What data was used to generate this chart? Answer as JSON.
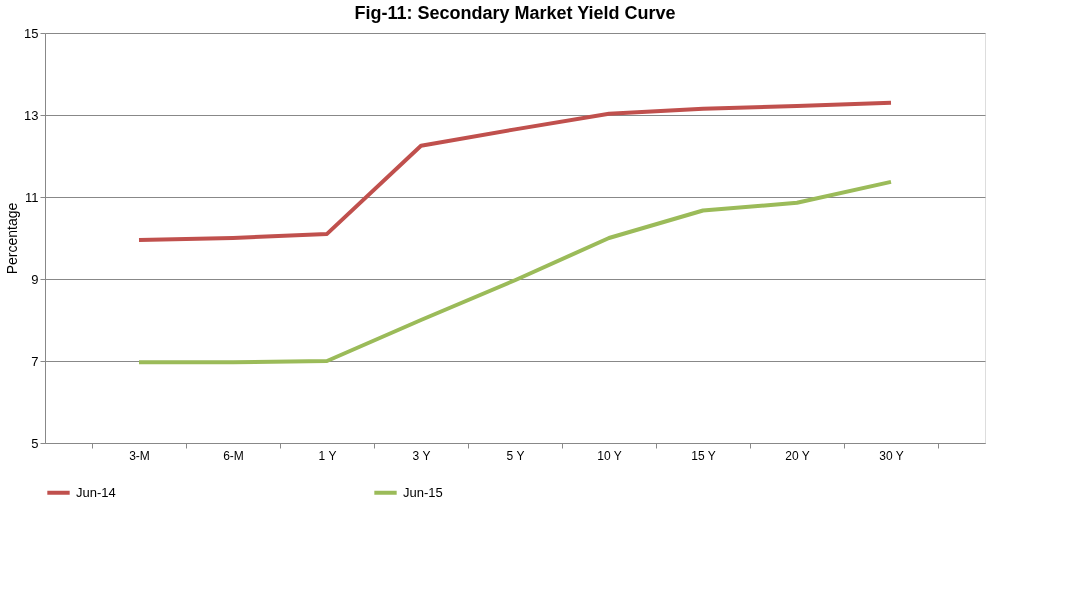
{
  "chart_data": {
    "type": "line",
    "title": "Fig-11: Secondary Market Yield Curve",
    "ylabel": "Percentage",
    "categories": [
      "3-M",
      "6-M",
      "1 Y",
      "3 Y",
      "5 Y",
      "10 Y",
      "15 Y",
      "20 Y",
      "30 Y"
    ],
    "series": [
      {
        "name": "Jun-14",
        "color": "#c0504d",
        "values": [
          9.95,
          10.0,
          10.1,
          12.25,
          12.65,
          13.03,
          13.15,
          13.22,
          13.3
        ]
      },
      {
        "name": "Jun-15",
        "color": "#9bbb59",
        "values": [
          6.97,
          6.97,
          7.0,
          8.0,
          8.97,
          10.0,
          10.67,
          10.86,
          11.37
        ]
      }
    ],
    "ylim": [
      5,
      15
    ],
    "yticks": [
      5,
      7,
      9,
      11,
      13,
      15
    ],
    "grid": "y",
    "legend": "bottom",
    "marker": "none",
    "line_style": "solid"
  }
}
